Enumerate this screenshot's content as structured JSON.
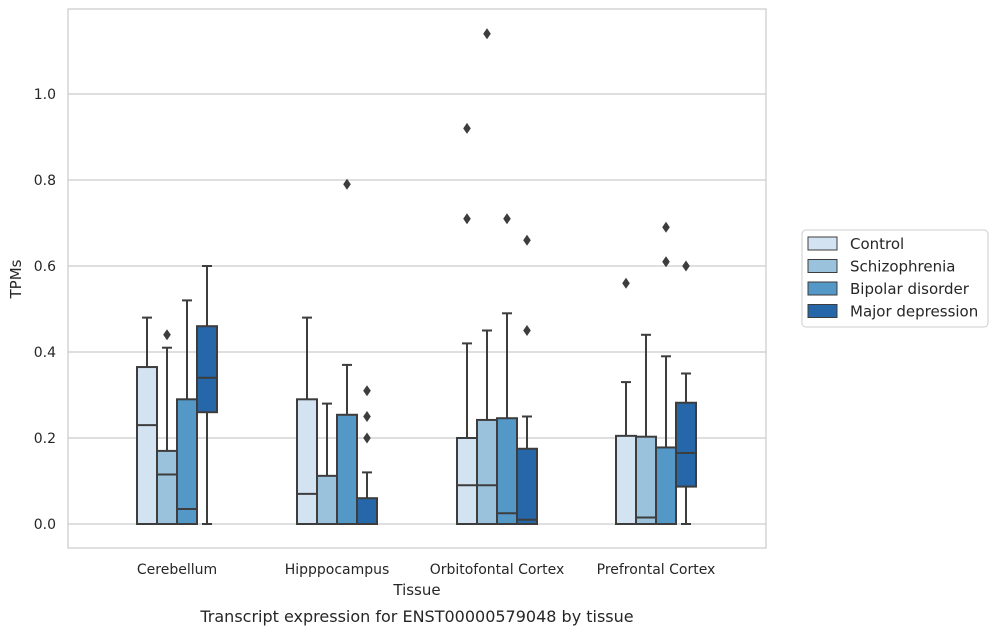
{
  "caption": "Transcript expression for ENST00000579048 by tissue",
  "chart_data": {
    "type": "box",
    "xlabel": "Tissue",
    "ylabel": "TPMs",
    "ylim": [
      -0.055,
      1.2
    ],
    "yticks": [
      0.0,
      0.2,
      0.4,
      0.6,
      0.8,
      1.0
    ],
    "ytick_labels": [
      "0.0",
      "0.2",
      "0.4",
      "0.6",
      "0.8",
      "1.0"
    ],
    "grid": "horizontal",
    "legend_position": "outside-right",
    "categories": [
      "Cerebellum",
      "Hipppocampus",
      "Orbitofontal Cortex",
      "Prefrontal Cortex"
    ],
    "series": [
      {
        "name": "Control",
        "color": "#d3e3f2",
        "boxes": [
          {
            "min": 0.0,
            "q1": 0.0,
            "median": 0.23,
            "q3": 0.365,
            "max": 0.48,
            "outliers": []
          },
          {
            "min": 0.0,
            "q1": 0.0,
            "median": 0.07,
            "q3": 0.29,
            "max": 0.48,
            "outliers": []
          },
          {
            "min": 0.0,
            "q1": 0.0,
            "median": 0.09,
            "q3": 0.2,
            "max": 0.42,
            "outliers": [
              0.71,
              0.92
            ]
          },
          {
            "min": 0.0,
            "q1": 0.0,
            "median": 0.0,
            "q3": 0.205,
            "max": 0.33,
            "outliers": [
              0.56
            ]
          }
        ]
      },
      {
        "name": "Schizophrenia",
        "color": "#9ac2dc",
        "boxes": [
          {
            "min": 0.0,
            "q1": 0.0,
            "median": 0.115,
            "q3": 0.17,
            "max": 0.41,
            "outliers": [
              0.44
            ]
          },
          {
            "min": 0.0,
            "q1": 0.0,
            "median": 0.0,
            "q3": 0.112,
            "max": 0.28,
            "outliers": []
          },
          {
            "min": 0.0,
            "q1": 0.0,
            "median": 0.09,
            "q3": 0.242,
            "max": 0.45,
            "outliers": [
              1.14
            ]
          },
          {
            "min": 0.0,
            "q1": 0.0,
            "median": 0.015,
            "q3": 0.203,
            "max": 0.44,
            "outliers": []
          }
        ]
      },
      {
        "name": "Bipolar disorder",
        "color": "#5498c8",
        "boxes": [
          {
            "min": 0.0,
            "q1": 0.0,
            "median": 0.035,
            "q3": 0.29,
            "max": 0.52,
            "outliers": []
          },
          {
            "min": 0.0,
            "q1": 0.0,
            "median": 0.0,
            "q3": 0.254,
            "max": 0.37,
            "outliers": [
              0.79
            ]
          },
          {
            "min": 0.0,
            "q1": 0.0,
            "median": 0.025,
            "q3": 0.246,
            "max": 0.49,
            "outliers": [
              0.71
            ]
          },
          {
            "min": 0.0,
            "q1": 0.0,
            "median": 0.0,
            "q3": 0.178,
            "max": 0.39,
            "outliers": [
              0.61,
              0.69
            ]
          }
        ]
      },
      {
        "name": "Major depression",
        "color": "#2567a8",
        "boxes": [
          {
            "min": 0.0,
            "q1": 0.26,
            "median": 0.34,
            "q3": 0.46,
            "max": 0.6,
            "outliers": []
          },
          {
            "min": 0.0,
            "q1": 0.0,
            "median": 0.0,
            "q3": 0.06,
            "max": 0.12,
            "outliers": [
              0.2,
              0.25,
              0.31
            ]
          },
          {
            "min": 0.0,
            "q1": 0.0,
            "median": 0.01,
            "q3": 0.175,
            "max": 0.25,
            "outliers": [
              0.45,
              0.66
            ]
          },
          {
            "min": 0.0,
            "q1": 0.087,
            "median": 0.165,
            "q3": 0.282,
            "max": 0.35,
            "outliers": [
              0.6
            ]
          }
        ]
      }
    ]
  }
}
